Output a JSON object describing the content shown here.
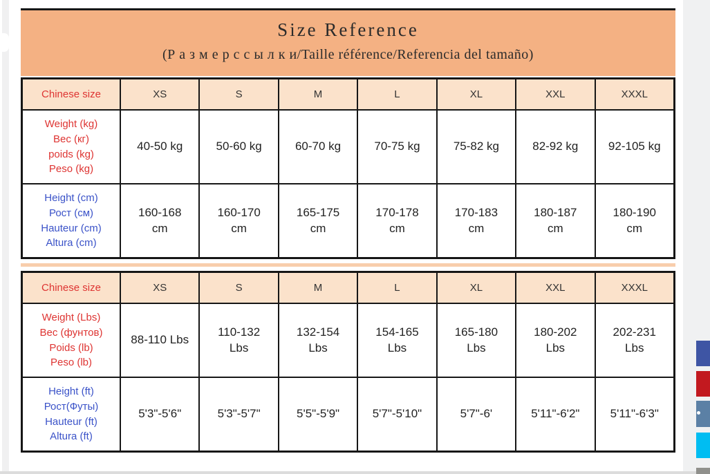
{
  "page": {
    "title": "Size Reference",
    "subtitle": "(Р а з м е р  с с ы л к и/Taille référence/Referencia del tamaño)"
  },
  "colors": {
    "header_band": "#f4b183",
    "header_cell_bg": "#fbe2cb",
    "label_red": "#de3432",
    "label_blue": "#3a52c8",
    "divider_peach": "#f8ceac",
    "swatches": [
      "#3e55a4",
      "#c2191f",
      "#5b80a5",
      "#00bdf2",
      "#90908c"
    ]
  },
  "tables": [
    {
      "header": [
        "Chinese size",
        "XS",
        "S",
        "M",
        "L",
        "XL",
        "XXL",
        "XXXL"
      ],
      "rows": [
        {
          "label_lines": [
            "Weight (kg)",
            "Вес (кг)",
            "poids (kg)",
            "Peso (kg)"
          ],
          "values": [
            "40-50 kg",
            "50-60 kg",
            "60-70 kg",
            "70-75 kg",
            "75-82 kg",
            "82-92 kg",
            "92-105 kg"
          ]
        },
        {
          "label_lines": [
            "Height (cm)",
            "Рост (см)",
            "Hauteur (cm)",
            "Altura (cm)"
          ],
          "values": [
            "160-168\ncm",
            "160-170\ncm",
            "165-175\ncm",
            "170-178\ncm",
            "170-183\ncm",
            "180-187\ncm",
            "180-190\ncm"
          ]
        }
      ]
    },
    {
      "header": [
        "Chinese size",
        "XS",
        "S",
        "M",
        "L",
        "XL",
        "XXL",
        "XXXL"
      ],
      "rows": [
        {
          "label_lines": [
            "Weight (Lbs)",
            "Вес (фунтов)",
            "Poids (lb)",
            "Peso (lb)"
          ],
          "values": [
            "88-110 Lbs",
            "110-132\nLbs",
            "132-154\nLbs",
            "154-165\nLbs",
            "165-180\nLbs",
            "180-202\nLbs",
            "202-231\nLbs"
          ]
        },
        {
          "label_lines": [
            "Height (ft)",
            "Рост(Футы)",
            "Hauteur (ft)",
            "Altura (ft)"
          ],
          "values": [
            "5'3\"-5'6\"",
            "5'3\"-5'7\"",
            "5'5\"-5'9\"",
            "5'7\"-5'10\"",
            "5'7\"-6'",
            "5'11\"-6'2\"",
            "5'11\"-6'3\""
          ]
        }
      ]
    }
  ]
}
